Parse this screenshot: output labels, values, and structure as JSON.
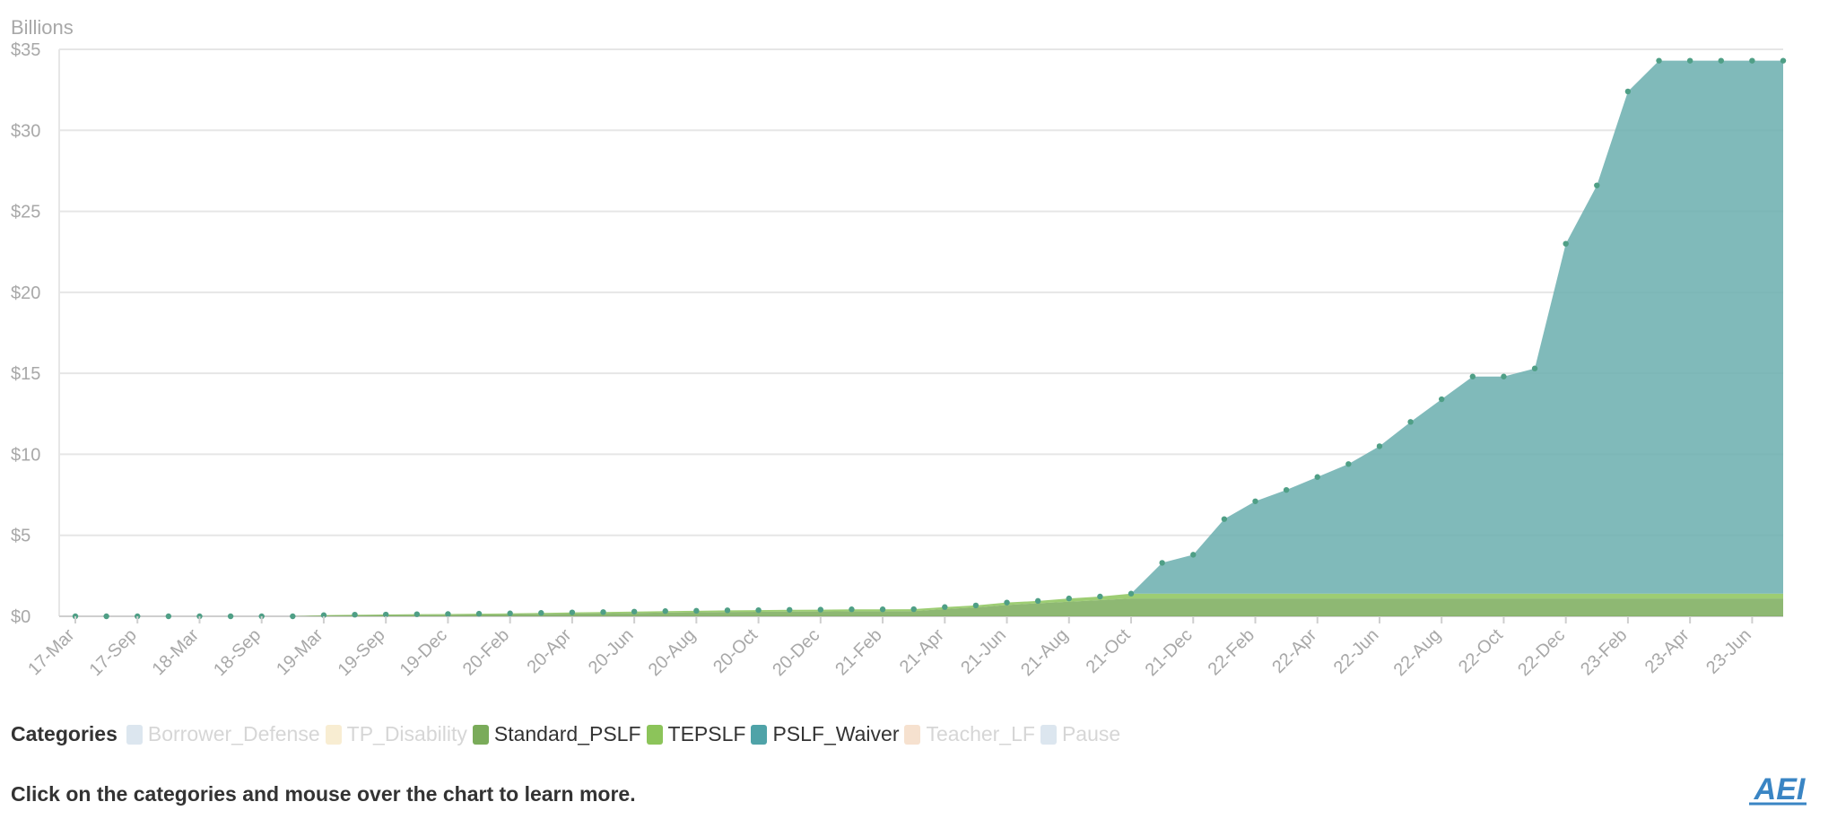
{
  "chart_data": {
    "type": "area",
    "stacked": true,
    "title": "",
    "xlabel": "",
    "ylabel": "Billions",
    "ylim": [
      0,
      35
    ],
    "yticks": [
      "$0",
      "$5",
      "$10",
      "$15",
      "$20",
      "$25",
      "$30",
      "$35"
    ],
    "grid": true,
    "x": [
      "17-Mar",
      "17-Jun",
      "17-Sep",
      "17-Dec",
      "18-Mar",
      "18-Jun",
      "18-Sep",
      "18-Dec",
      "19-Mar",
      "19-Jun",
      "19-Sep",
      "19-Nov",
      "19-Dec",
      "20-Jan",
      "20-Feb",
      "20-Mar",
      "20-Apr",
      "20-May",
      "20-Jun",
      "20-Jul",
      "20-Aug",
      "20-Sep",
      "20-Oct",
      "20-Nov",
      "20-Dec",
      "21-Jan",
      "21-Feb",
      "21-Mar",
      "21-Apr",
      "21-May",
      "21-Jun",
      "21-Jul",
      "21-Aug",
      "21-Sep",
      "21-Oct",
      "21-Nov",
      "21-Dec",
      "22-Jan",
      "22-Feb",
      "22-Mar",
      "22-Apr",
      "22-May",
      "22-Jun",
      "22-Jul",
      "22-Aug",
      "22-Sep",
      "22-Oct",
      "22-Nov",
      "22-Dec",
      "23-Jan",
      "23-Feb",
      "23-Mar",
      "23-Apr",
      "23-May",
      "23-Jun",
      "23-Jul"
    ],
    "x_tick_labels": [
      "17-Mar",
      "17-Sep",
      "18-Mar",
      "18-Sep",
      "19-Mar",
      "19-Sep",
      "19-Dec",
      "20-Feb",
      "20-Apr",
      "20-Jun",
      "20-Aug",
      "20-Oct",
      "20-Dec",
      "21-Feb",
      "21-Apr",
      "21-Jun",
      "21-Aug",
      "21-Oct",
      "21-Dec",
      "22-Feb",
      "22-Apr",
      "22-Jun",
      "22-Aug",
      "22-Oct",
      "22-Dec",
      "23-Feb",
      "23-Apr",
      "23-Jun"
    ],
    "series": [
      {
        "name": "Standard_PSLF",
        "color": "#7aab5a",
        "values": [
          0,
          0,
          0,
          0,
          0,
          0,
          0,
          0,
          0.05,
          0.07,
          0.08,
          0.09,
          0.1,
          0.11,
          0.13,
          0.15,
          0.17,
          0.19,
          0.21,
          0.23,
          0.25,
          0.27,
          0.28,
          0.29,
          0.3,
          0.31,
          0.31,
          0.32,
          0.45,
          0.55,
          0.7,
          0.8,
          0.9,
          1.0,
          1.1,
          1.1,
          1.1,
          1.1,
          1.1,
          1.1,
          1.1,
          1.1,
          1.1,
          1.1,
          1.1,
          1.1,
          1.1,
          1.1,
          1.1,
          1.1,
          1.1,
          1.1,
          1.1,
          1.1,
          1.1,
          1.1
        ]
      },
      {
        "name": "TEPSLF",
        "color": "#8cc45a",
        "values": [
          0,
          0,
          0,
          0,
          0,
          0,
          0,
          0,
          0.02,
          0.03,
          0.03,
          0.04,
          0.04,
          0.05,
          0.05,
          0.06,
          0.07,
          0.07,
          0.08,
          0.09,
          0.09,
          0.1,
          0.1,
          0.11,
          0.11,
          0.12,
          0.12,
          0.12,
          0.12,
          0.12,
          0.15,
          0.15,
          0.2,
          0.22,
          0.3,
          0.3,
          0.3,
          0.3,
          0.3,
          0.3,
          0.3,
          0.3,
          0.3,
          0.3,
          0.3,
          0.3,
          0.3,
          0.3,
          0.3,
          0.3,
          0.3,
          0.3,
          0.3,
          0.3,
          0.3,
          0.3
        ]
      },
      {
        "name": "PSLF_Waiver",
        "color": "#6aaeae",
        "values": [
          0,
          0,
          0,
          0,
          0,
          0,
          0,
          0,
          0,
          0,
          0,
          0,
          0,
          0,
          0,
          0,
          0,
          0,
          0,
          0,
          0,
          0,
          0,
          0,
          0,
          0,
          0,
          0,
          0,
          0,
          0,
          0,
          0,
          0,
          0,
          1.9,
          2.4,
          4.6,
          5.7,
          6.4,
          7.2,
          8.0,
          9.1,
          10.6,
          12.0,
          13.4,
          13.4,
          13.9,
          21.6,
          25.2,
          31.0,
          32.9,
          32.9,
          32.9,
          32.9,
          32.9
        ]
      }
    ]
  },
  "legend": {
    "title": "Categories",
    "items": [
      {
        "label": "Borrower_Defense",
        "color": "#dce6ef",
        "active": false
      },
      {
        "label": "TP_Disability",
        "color": "#f8edd2",
        "active": false
      },
      {
        "label": "Standard_PSLF",
        "color": "#7aab5a",
        "active": true
      },
      {
        "label": "TEPSLF",
        "color": "#8cc45a",
        "active": true
      },
      {
        "label": "PSLF_Waiver",
        "color": "#4fa3a8",
        "active": true
      },
      {
        "label": "Teacher_LF",
        "color": "#f6e1cf",
        "active": false
      },
      {
        "label": "Pause",
        "color": "#dce6ef",
        "active": false
      }
    ]
  },
  "note": "Click on the categories and mouse over the chart to learn more.",
  "logo": {
    "text": "AEI",
    "color": "#3a85c4"
  }
}
